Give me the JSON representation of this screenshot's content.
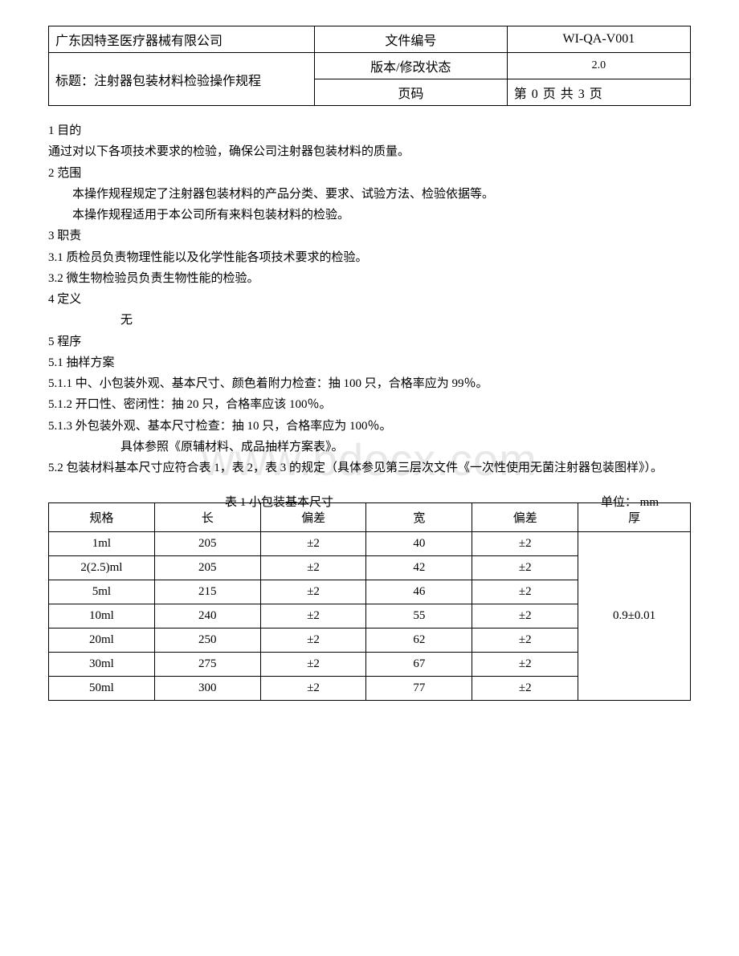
{
  "header": {
    "company": "广东因特圣医疗器械有限公司",
    "doc_no_label": "文件编号",
    "doc_no_value": "WI-QA-V001",
    "title_label": "标题：注射器包装材料检验操作规程",
    "version_label": "版本/修改状态",
    "version_value": "2.0",
    "page_label": "页码",
    "page_value": "第 0 页 共 3 页"
  },
  "watermark": "www.bdocx.com",
  "sections": {
    "p1": "1 目的",
    "p1_body": " 通过对以下各项技术要求的检验，确保公司注射器包装材料的质量。",
    "p2": "2 范围",
    "p2_body1": "本操作规程规定了注射器包装材料的产品分类、要求、试验方法、检验依据等。",
    "p2_body2": "本操作规程适用于本公司所有来料包装材料的检验。",
    "p3": "3 职责",
    "p3_1": "3.1 质检员负责物理性能以及化学性能各项技术要求的检验。",
    "p3_2": "3.2 微生物检验员负责生物性能的检验。",
    "p4": "4 定义",
    "p4_body": "无",
    "p5": "5 程序",
    "p5_1": "5.1 抽样方案",
    "p5_1_1": "5.1.1 中、小包装外观、基本尺寸、颜色着附力检查：抽 100 只，合格率应为 99％。",
    "p5_1_2": "5.1.2 开口性、密闭性：抽 20 只，合格率应该 100％。",
    "p5_1_3": "5.1.3 外包装外观、基本尺寸检查：抽 10 只，合格率应为 100％。",
    "p5_1_ref": "具体参照《原辅材料、成品抽样方案表》。",
    "p5_2": "5.2 包装材料基本尺寸应符合表 1，表 2，表 3 的规定（具体参见第三层次文件《一次性使用无菌注射器包装图样》）。"
  },
  "table1": {
    "caption_title": "表 1   小包装基本尺寸",
    "caption_unit": "单位：  mm",
    "columns": [
      "规格",
      "长",
      "偏差",
      "宽",
      "偏差",
      "厚"
    ],
    "col_widths_pct": [
      16.5,
      16.5,
      16.5,
      16.5,
      16.5,
      17.5
    ],
    "thickness_merged": "0.9±0.01",
    "rows": [
      [
        "1ml",
        "205",
        "±2",
        "40",
        "±2"
      ],
      [
        "2(2.5)ml",
        "205",
        "±2",
        "42",
        "±2"
      ],
      [
        "5ml",
        "215",
        "±2",
        "46",
        "±2"
      ],
      [
        "10ml",
        "240",
        "±2",
        "55",
        "±2"
      ],
      [
        "20ml",
        "250",
        "±2",
        "62",
        "±2"
      ],
      [
        "30ml",
        "275",
        "±2",
        "67",
        "±2"
      ],
      [
        "50ml",
        "300",
        "±2",
        "77",
        "±2"
      ]
    ]
  },
  "colors": {
    "text": "#000000",
    "background": "#ffffff",
    "watermark": "#e8e8e8",
    "border": "#000000"
  },
  "typography": {
    "body_font_size_pt": 11,
    "header_font_size_pt": 12,
    "watermark_font_size_pt": 42,
    "font_family": "SimSun"
  }
}
